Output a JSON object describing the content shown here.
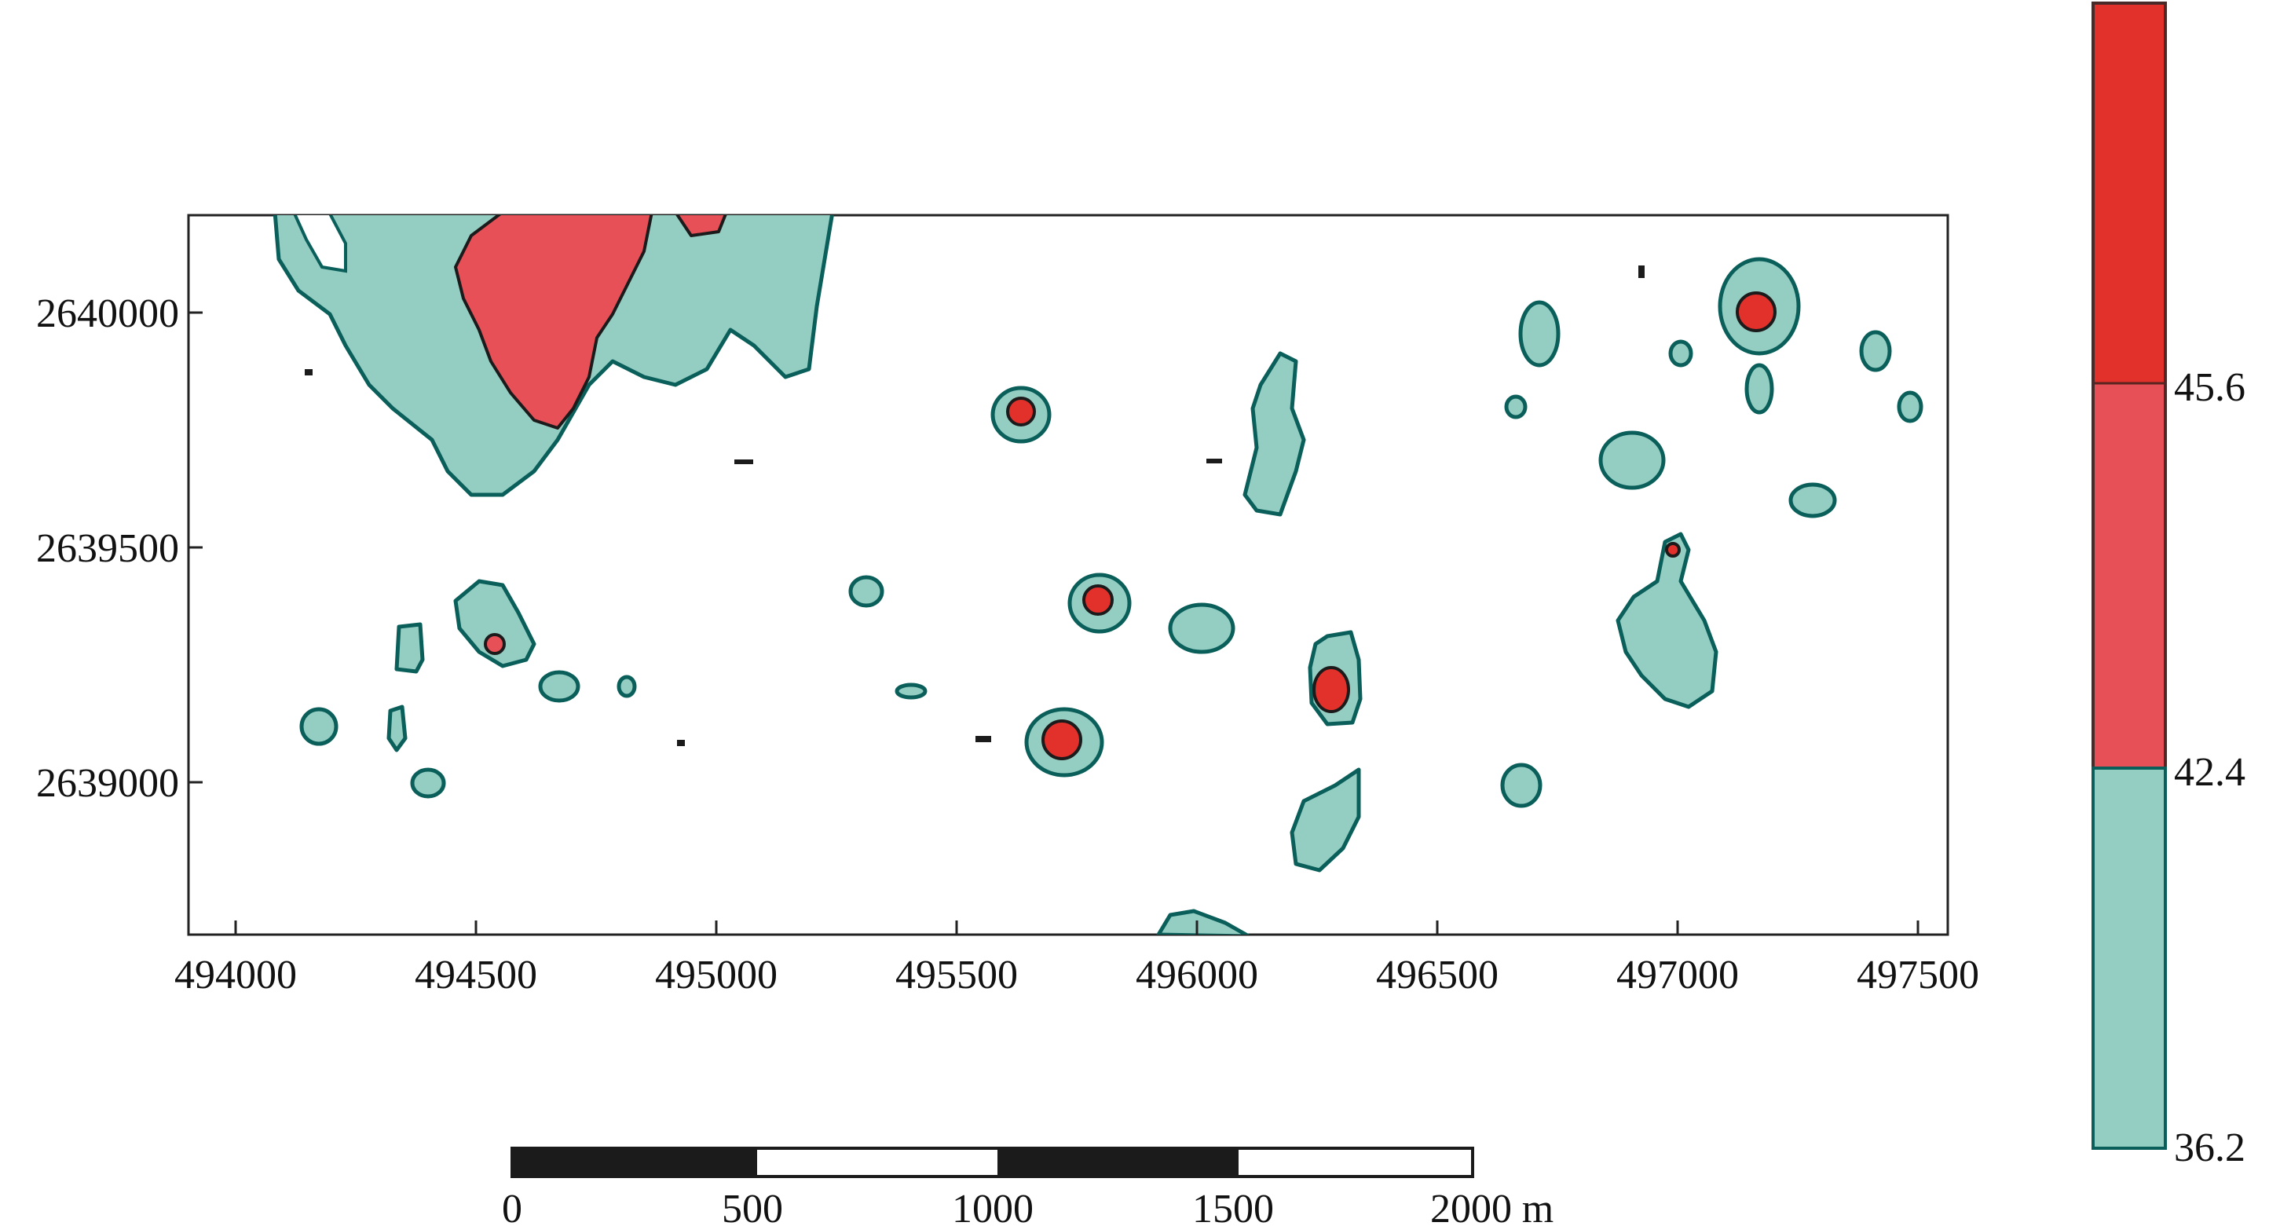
{
  "map": {
    "x_axis": {
      "ticks": [
        "494000",
        "494500",
        "495000",
        "495500",
        "496000",
        "496500",
        "497000",
        "497500"
      ]
    },
    "y_axis": {
      "ticks": [
        "2640000",
        "2639500",
        "2639000"
      ]
    }
  },
  "colorbar": {
    "labels": [
      "45.6",
      "42.4",
      "36.2"
    ],
    "colors": {
      "high": "#e2312b",
      "mid": "#e85058",
      "low": "#94cdc2",
      "outline": "#0a5f5a"
    }
  },
  "scalebar": {
    "labels": [
      "0",
      "500",
      "1000",
      "1500",
      "2000"
    ],
    "unit": "m"
  }
}
